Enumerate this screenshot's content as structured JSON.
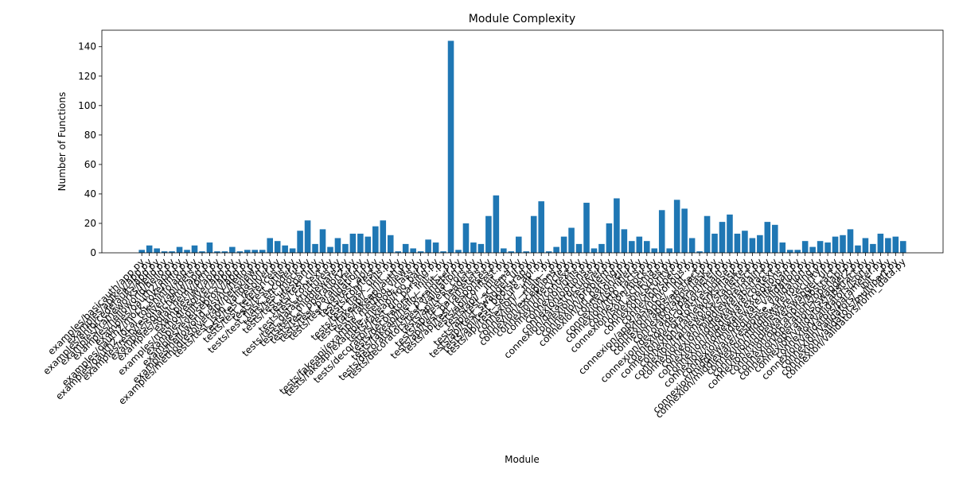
{
  "chart_data": {
    "type": "bar",
    "title": "Module Complexity",
    "x_label": "Module",
    "y_label": "Number of Functions",
    "color": "#1f77b4",
    "grid": false,
    "ylim": [
      0,
      151.2
    ],
    "yticks": [
      0,
      20,
      40,
      60,
      80,
      100,
      120,
      140
    ],
    "categories": [
      "examples/basicauth/app.py",
      "examples/apikey/app.py",
      "examples/enforcedefaults/app.py",
      "examples/frameworks/hello.py",
      "examples/helloworld/hello.py",
      "examples/oauth2/app.py",
      "examples/oauth2/mock_tokeninfo.py",
      "examples/oauth2_local_tokeninfo/app.py",
      "examples/restyresolver/api/pets.py",
      "examples/sqlalchemy/app.py",
      "examples/sqlalchemy/orm.py",
      "examples/jwt/app.py",
      "examples/methodresolver/app.py",
      "examples/splitspecs/app.py",
      "examples/reverseproxy/app.py",
      "examples/helloworld_async/hello.py",
      "examples/methodresolver/api/petsview.py",
      "tests/test_json_validation.py",
      "tests/test_resolver.py",
      "tests/test_references.py",
      "tests/test_utils.py",
      "tests/test_flask_encoder.py",
      "tests/test_mock.py",
      "tests/test_lifespan.py",
      "tests/test_cli.py",
      "tests/test_context.py",
      "tests/test_datastructures.py",
      "tests/test_middleware.py",
      "tests/test_operation2.py",
      "tests/test_parameter.py",
      "tests/test_validation.py",
      "tests/test_api.py",
      "tests/conftest.py",
      "tests/test_flask_utils.py",
      "tests/fakeapi/__init__.py",
      "tests/fakeapi/auth.py",
      "tests/fakeapi/example_method_view.py",
      "tests/fakeapi/example_method_class.py",
      "tests/fakeapi/foo_bar.py",
      "tests/decorators/test_uri_parsing.py",
      "tests/decorators/__init__.py",
      "tests/fakeapi/hello/__init__.py",
      "tests/decorators/test_parameter.py",
      "tests/decorators/test_validation.py",
      "tests/api/test_cors.py",
      "tests/api/test_headers.py",
      "tests/api/test_parameters.py",
      "tests/api/test_responses.py",
      "tests/api/conftest.py",
      "tests/api/__init__.py",
      "tests/api/test_schema.py",
      "tests/api/test_swagger_ui.py",
      "tests/api/test_bootstrap.py",
      "tests/api/test_secure_api.py",
      "connexion/__init__.py",
      "connexion/__main__.py",
      "connexion/exceptions.py",
      "connexion/lifecycle.py",
      "connexion/context.py",
      "connexion/utils.py",
      "connexion/options.py",
      "connexion/datastructures.py",
      "connexion/resolver.py",
      "connexion/problem.py",
      "connexion/uri_parsing.py",
      "connexion/cli.py",
      "connexion/jsonifier.py",
      "connexion/http_facts.py",
      "connexion/mock.py",
      "connexion/json_schema.py",
      "connexion/types.py",
      "connexion/security.py",
      "connexion/spec.py",
      "connexion/apps/asynchronous.py",
      "connexion/apps/__init__.py",
      "connexion/apps/abstract.py",
      "connexion/apps/flask.py",
      "connexion/decorators/parameter.py",
      "connexion/decorators/main.py",
      "connexion/decorators/response.py",
      "connexion/frameworks/flask.py",
      "connexion/frameworks/starlette.py",
      "connexion/frameworks/abstract.py",
      "connexion/middleware/main.py",
      "connexion/middleware/abstract.py",
      "connexion/middleware/context.py",
      "connexion/middleware/exceptions.py",
      "connexion/middleware/lifespan.py",
      "connexion/middleware/request_validation.py",
      "connexion/middleware/response_validation.py",
      "connexion/middleware/routing.py",
      "connexion/middleware/security.py",
      "connexion/middleware/swagger_ui.py",
      "connexion/operations/abstract.py",
      "connexion/operations/openapi.py",
      "connexion/operations/swagger2.py",
      "connexion/validators/abstract.py",
      "connexion/validators/json.py",
      "connexion/validators/parameter.py",
      "connexion/validators/__init__.py",
      "connexion/validators/multipart.py",
      "connexion/validators/form_data.py"
    ],
    "values": [
      2,
      5,
      3,
      1,
      1,
      4,
      2,
      5,
      1,
      7,
      1,
      1,
      4,
      1,
      2,
      2,
      2,
      10,
      8,
      5,
      3,
      15,
      22,
      6,
      16,
      4,
      10,
      6,
      13,
      13,
      11,
      18,
      22,
      12,
      1,
      6,
      3,
      1,
      9,
      7,
      1,
      144,
      2,
      20,
      7,
      6,
      25,
      39,
      3,
      1,
      11,
      1,
      25,
      35,
      1,
      4,
      11,
      17,
      6,
      34,
      3,
      6,
      20,
      37,
      16,
      8,
      11,
      8,
      3,
      29,
      3,
      36,
      30,
      10,
      1,
      25,
      13,
      21,
      26,
      13,
      15,
      10,
      12,
      21,
      19,
      7,
      2,
      2,
      8,
      4,
      8,
      7,
      11,
      12,
      16,
      5,
      10,
      6,
      13,
      10,
      11,
      8
    ]
  }
}
